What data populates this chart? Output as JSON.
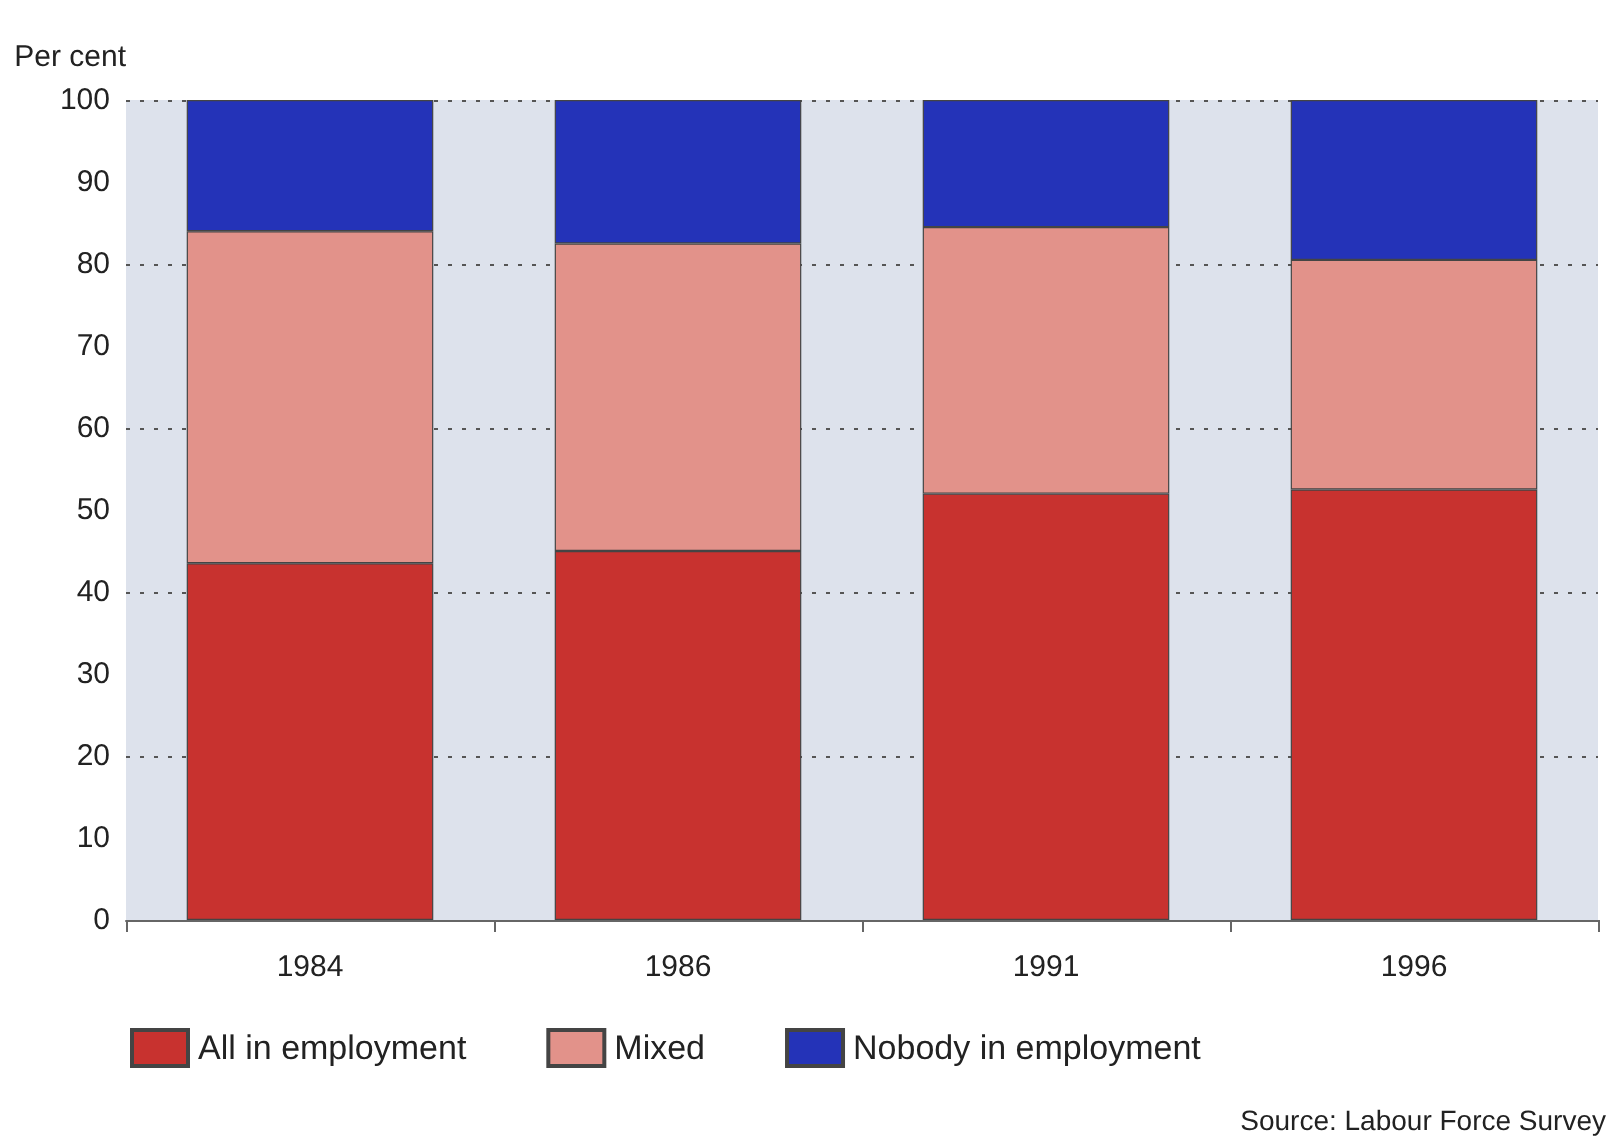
{
  "chart_data": {
    "type": "bar",
    "ylabel": "Per cent",
    "categories": [
      "1984",
      "1986",
      "1991",
      "1996"
    ],
    "stacked": true,
    "series": [
      {
        "name": "All in employment",
        "color": "#c8322f",
        "values": [
          43.5,
          45,
          52,
          52.5
        ]
      },
      {
        "name": "Mixed",
        "color": "#e2928a",
        "values": [
          40.5,
          37.5,
          32.5,
          28
        ]
      },
      {
        "name": "Nobody in employment",
        "color": "#2433b8",
        "values": [
          16,
          17.5,
          15.5,
          19.5
        ]
      }
    ],
    "ylim": [
      0,
      100
    ],
    "yticks": [
      0,
      10,
      20,
      30,
      40,
      50,
      60,
      70,
      80,
      90,
      100
    ],
    "grid": "y",
    "legend": "bottom",
    "annotations": [
      "Source: Labour Force Survey"
    ]
  }
}
